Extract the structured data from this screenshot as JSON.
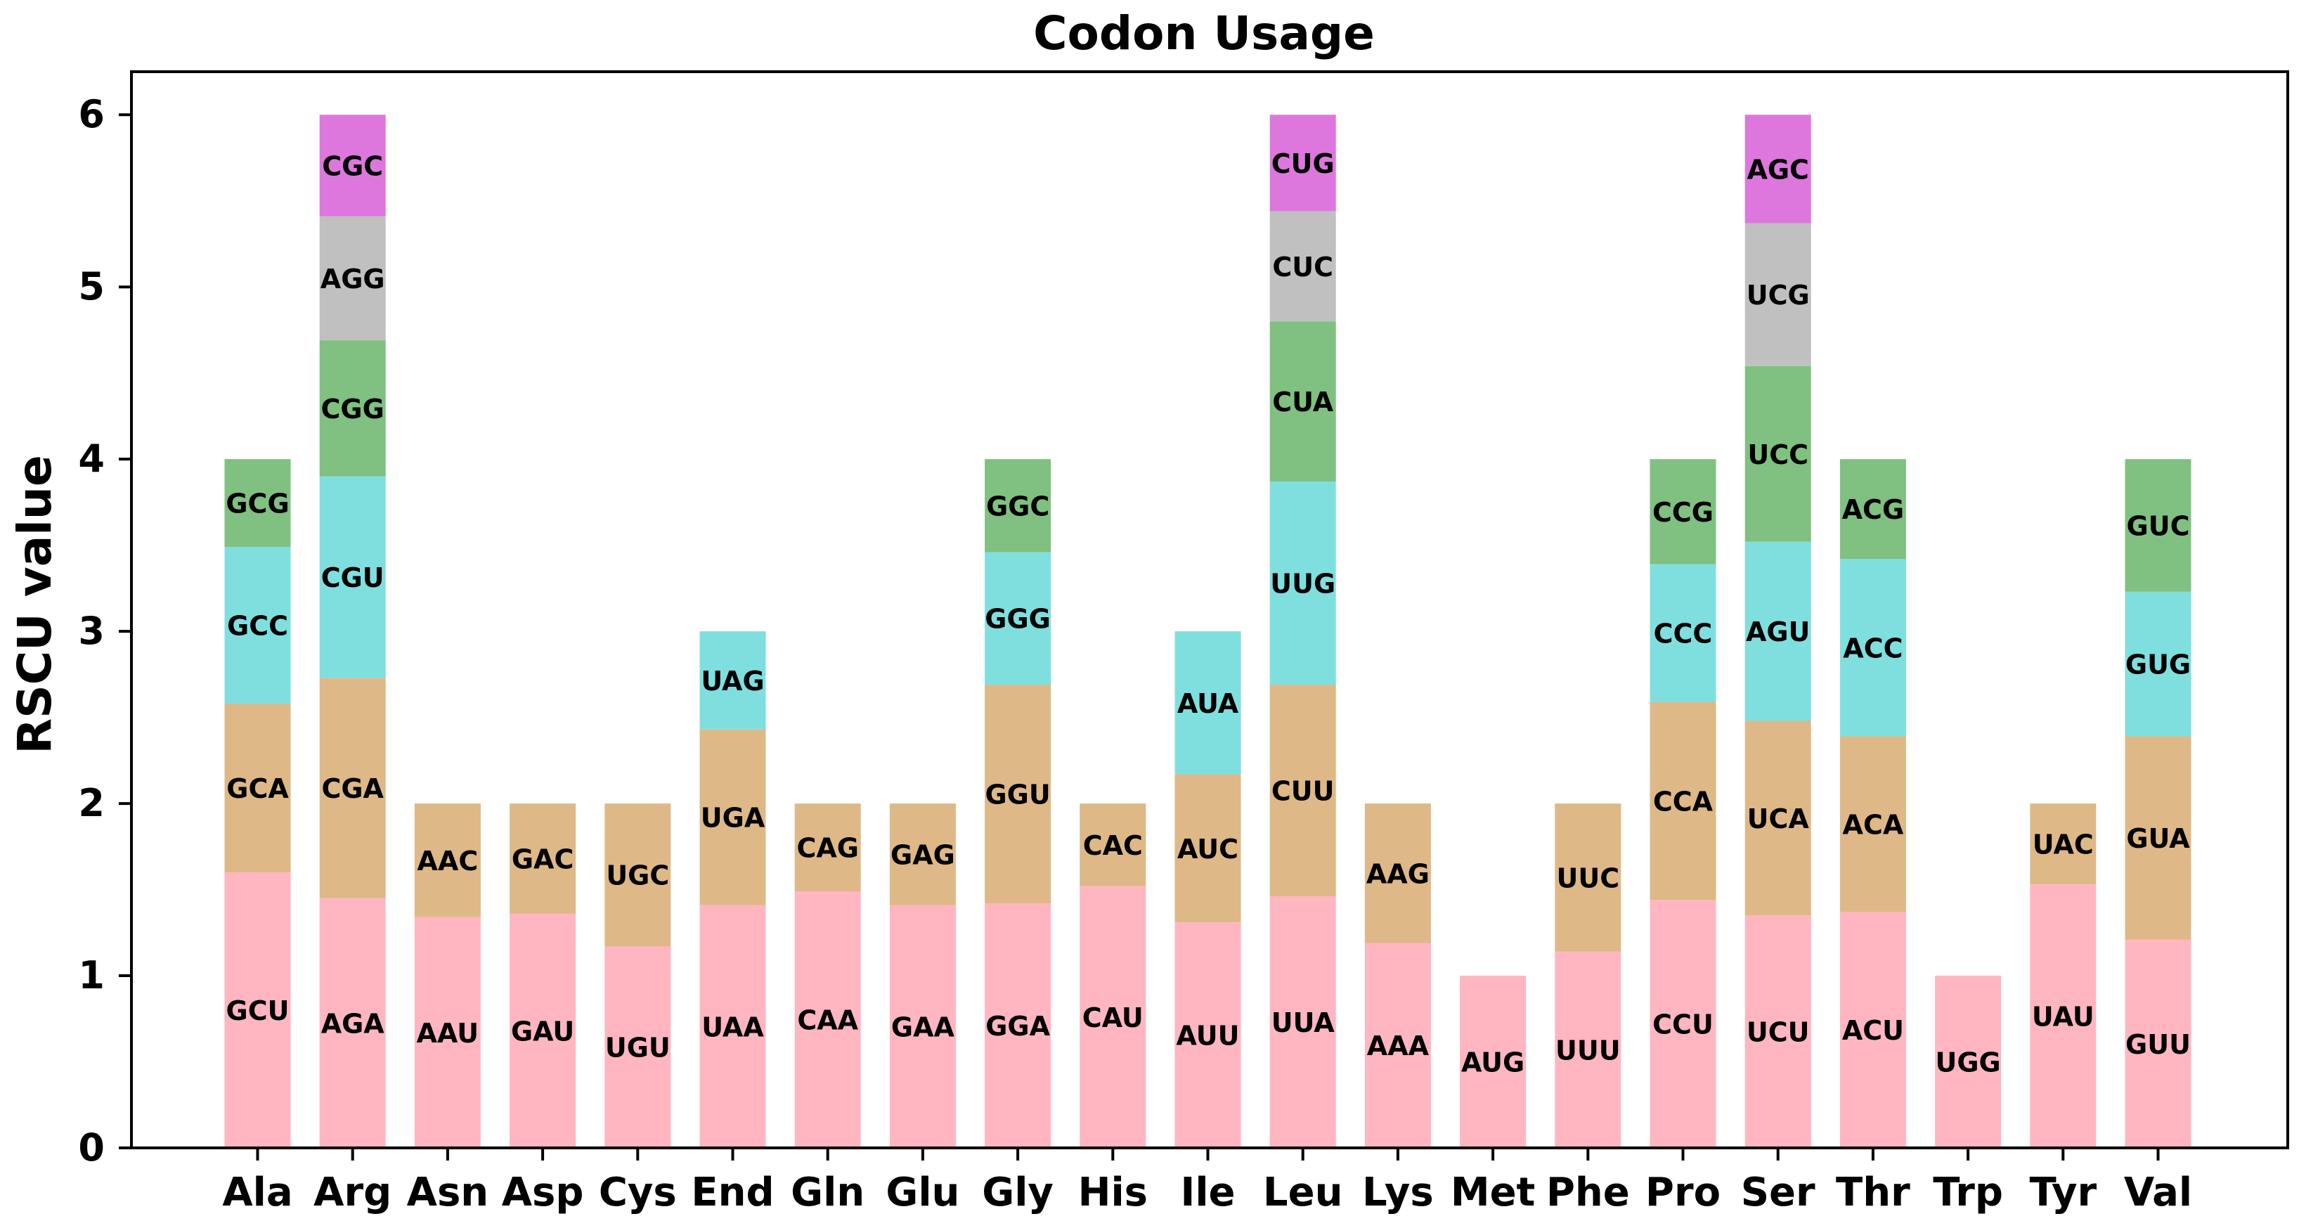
{
  "chart_data": {
    "type": "bar",
    "stacked": true,
    "title": "Codon Usage",
    "xlabel": "",
    "ylabel": "RSCU value",
    "ylim": [
      0,
      6.25
    ],
    "yticks": [
      "0",
      "1",
      "2",
      "3",
      "4",
      "5",
      "6"
    ],
    "grid": false,
    "legend": "none",
    "layer_colors": [
      "#ffb6c1",
      "#deb887",
      "#7fdfdf",
      "#80c080",
      "#c0c0c0",
      "#dd77dd"
    ],
    "categories": [
      "Ala",
      "Arg",
      "Asn",
      "Asp",
      "Cys",
      "End",
      "Gln",
      "Glu",
      "Gly",
      "His",
      "Ile",
      "Leu",
      "Lys",
      "Met",
      "Phe",
      "Pro",
      "Ser",
      "Thr",
      "Trp",
      "Tyr",
      "Val"
    ],
    "stacks": [
      {
        "amino_acid": "Ala",
        "segments": [
          {
            "codon": "GCU",
            "value": 1.6
          },
          {
            "codon": "GCA",
            "value": 0.98
          },
          {
            "codon": "GCC",
            "value": 0.91
          },
          {
            "codon": "GCG",
            "value": 0.51
          }
        ]
      },
      {
        "amino_acid": "Arg",
        "segments": [
          {
            "codon": "AGA",
            "value": 1.45
          },
          {
            "codon": "CGA",
            "value": 1.28
          },
          {
            "codon": "CGU",
            "value": 1.17
          },
          {
            "codon": "CGG",
            "value": 0.79
          },
          {
            "codon": "AGG",
            "value": 0.72
          },
          {
            "codon": "CGC",
            "value": 0.59
          }
        ]
      },
      {
        "amino_acid": "Asn",
        "segments": [
          {
            "codon": "AAU",
            "value": 1.34
          },
          {
            "codon": "AAC",
            "value": 0.66
          }
        ]
      },
      {
        "amino_acid": "Asp",
        "segments": [
          {
            "codon": "GAU",
            "value": 1.36
          },
          {
            "codon": "GAC",
            "value": 0.64
          }
        ]
      },
      {
        "amino_acid": "Cys",
        "segments": [
          {
            "codon": "UGU",
            "value": 1.17
          },
          {
            "codon": "UGC",
            "value": 0.83
          }
        ]
      },
      {
        "amino_acid": "End",
        "segments": [
          {
            "codon": "UAA",
            "value": 1.41
          },
          {
            "codon": "UGA",
            "value": 1.02
          },
          {
            "codon": "UAG",
            "value": 0.57
          }
        ]
      },
      {
        "amino_acid": "Gln",
        "segments": [
          {
            "codon": "CAA",
            "value": 1.49
          },
          {
            "codon": "CAG",
            "value": 0.51
          }
        ]
      },
      {
        "amino_acid": "Glu",
        "segments": [
          {
            "codon": "GAA",
            "value": 1.41
          },
          {
            "codon": "GAG",
            "value": 0.59
          }
        ]
      },
      {
        "amino_acid": "Gly",
        "segments": [
          {
            "codon": "GGA",
            "value": 1.42
          },
          {
            "codon": "GGU",
            "value": 1.27
          },
          {
            "codon": "GGG",
            "value": 0.77
          },
          {
            "codon": "GGC",
            "value": 0.54
          }
        ]
      },
      {
        "amino_acid": "His",
        "segments": [
          {
            "codon": "CAU",
            "value": 1.52
          },
          {
            "codon": "CAC",
            "value": 0.48
          }
        ]
      },
      {
        "amino_acid": "Ile",
        "segments": [
          {
            "codon": "AUU",
            "value": 1.31
          },
          {
            "codon": "AUC",
            "value": 0.86
          },
          {
            "codon": "AUA",
            "value": 0.83
          }
        ]
      },
      {
        "amino_acid": "Leu",
        "segments": [
          {
            "codon": "UUA",
            "value": 1.46
          },
          {
            "codon": "CUU",
            "value": 1.23
          },
          {
            "codon": "UUG",
            "value": 1.18
          },
          {
            "codon": "CUA",
            "value": 0.93
          },
          {
            "codon": "CUC",
            "value": 0.64
          },
          {
            "codon": "CUG",
            "value": 0.56
          }
        ]
      },
      {
        "amino_acid": "Lys",
        "segments": [
          {
            "codon": "AAA",
            "value": 1.19
          },
          {
            "codon": "AAG",
            "value": 0.81
          }
        ]
      },
      {
        "amino_acid": "Met",
        "segments": [
          {
            "codon": "AUG",
            "value": 1.0
          }
        ]
      },
      {
        "amino_acid": "Phe",
        "segments": [
          {
            "codon": "UUU",
            "value": 1.14
          },
          {
            "codon": "UUC",
            "value": 0.86
          }
        ]
      },
      {
        "amino_acid": "Pro",
        "segments": [
          {
            "codon": "CCU",
            "value": 1.44
          },
          {
            "codon": "CCA",
            "value": 1.15
          },
          {
            "codon": "CCC",
            "value": 0.8
          },
          {
            "codon": "CCG",
            "value": 0.61
          }
        ]
      },
      {
        "amino_acid": "Ser",
        "segments": [
          {
            "codon": "UCU",
            "value": 1.35
          },
          {
            "codon": "UCA",
            "value": 1.13
          },
          {
            "codon": "AGU",
            "value": 1.04
          },
          {
            "codon": "UCC",
            "value": 1.02
          },
          {
            "codon": "UCG",
            "value": 0.83
          },
          {
            "codon": "AGC",
            "value": 0.63
          }
        ]
      },
      {
        "amino_acid": "Thr",
        "segments": [
          {
            "codon": "ACU",
            "value": 1.37
          },
          {
            "codon": "ACA",
            "value": 1.02
          },
          {
            "codon": "ACC",
            "value": 1.03
          },
          {
            "codon": "ACG",
            "value": 0.58
          }
        ]
      },
      {
        "amino_acid": "Trp",
        "segments": [
          {
            "codon": "UGG",
            "value": 1.0
          }
        ]
      },
      {
        "amino_acid": "Tyr",
        "segments": [
          {
            "codon": "UAU",
            "value": 1.53
          },
          {
            "codon": "UAC",
            "value": 0.47
          }
        ]
      },
      {
        "amino_acid": "Val",
        "segments": [
          {
            "codon": "GUU",
            "value": 1.21
          },
          {
            "codon": "GUA",
            "value": 1.18
          },
          {
            "codon": "GUG",
            "value": 0.84
          },
          {
            "codon": "GUC",
            "value": 0.77
          }
        ]
      }
    ]
  }
}
